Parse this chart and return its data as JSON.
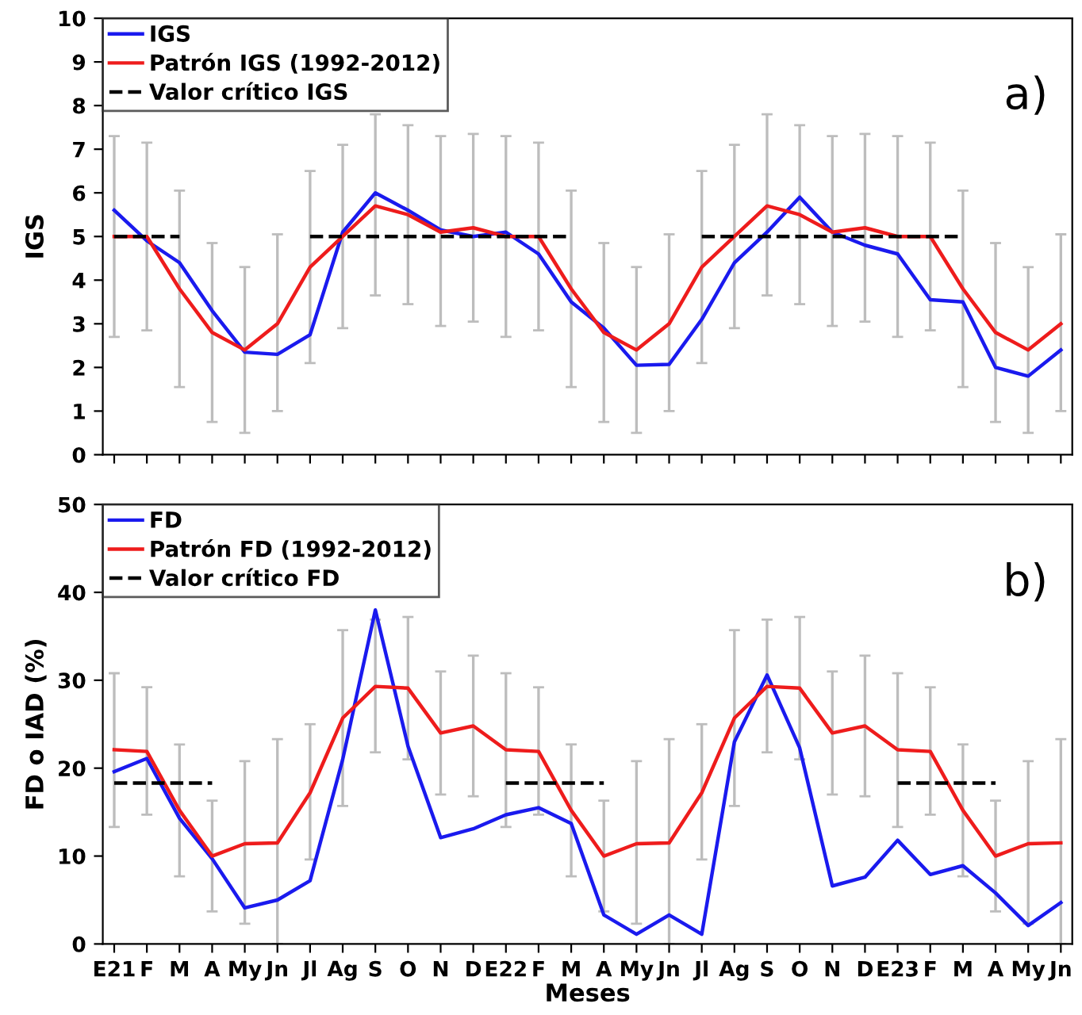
{
  "chart_data": [
    {
      "type": "line",
      "ylabel": "IGS",
      "annotations": [
        "a)"
      ],
      "legend": "top left",
      "grid": false,
      "marker": "none",
      "categories": [
        null,
        null,
        null,
        null,
        null,
        null,
        null,
        null,
        null,
        null,
        null,
        null,
        null,
        null,
        null,
        null,
        null,
        null,
        null,
        null,
        null,
        null,
        null,
        null,
        null,
        null,
        null,
        null,
        null,
        null
      ],
      "ylim": [
        0,
        10
      ],
      "yticks": [
        0,
        1,
        2,
        3,
        4,
        5,
        6,
        7,
        8,
        9,
        10
      ],
      "series": [
        {
          "name": "IGS",
          "color": "#1a1aee",
          "line_style": "solid",
          "values": [
            5.6,
            4.9,
            4.4,
            3.3,
            2.35,
            2.3,
            2.75,
            5.1,
            6.0,
            5.6,
            5.15,
            5.0,
            5.1,
            4.6,
            3.5,
            2.9,
            2.05,
            2.07,
            3.1,
            4.4,
            5.1,
            5.9,
            5.1,
            4.8,
            4.6,
            3.55,
            3.5,
            2.0,
            1.8,
            2.4
          ]
        },
        {
          "name": "Patrón IGS (1992-2012)",
          "color": "#ee1c1c",
          "line_style": "solid",
          "values": [
            5.0,
            5.0,
            3.8,
            2.8,
            2.4,
            3.0,
            4.3,
            5.0,
            5.7,
            5.5,
            5.1,
            5.2,
            5.0,
            5.0,
            3.8,
            2.8,
            2.4,
            3.0,
            4.3,
            5.0,
            5.7,
            5.5,
            5.1,
            5.2,
            5.0,
            5.0,
            3.8,
            2.8,
            2.4,
            3.0
          ],
          "errors": [
            [
              2.7,
              7.3
            ],
            [
              2.85,
              7.15
            ],
            [
              1.55,
              6.05
            ],
            [
              0.75,
              4.85
            ],
            [
              0.5,
              4.3
            ],
            [
              1.0,
              5.05
            ],
            [
              2.1,
              6.5
            ],
            [
              2.9,
              7.1
            ],
            [
              3.65,
              7.8
            ],
            [
              3.45,
              7.55
            ],
            [
              2.95,
              7.3
            ],
            [
              3.05,
              7.35
            ],
            [
              2.7,
              7.3
            ],
            [
              2.85,
              7.15
            ],
            [
              1.55,
              6.05
            ],
            [
              0.75,
              4.85
            ],
            [
              0.5,
              4.3
            ],
            [
              1.0,
              5.05
            ],
            [
              2.1,
              6.5
            ],
            [
              2.9,
              7.1
            ],
            [
              3.65,
              7.8
            ],
            [
              3.45,
              7.55
            ],
            [
              2.95,
              7.3
            ],
            [
              3.05,
              7.35
            ],
            [
              2.7,
              7.3
            ],
            [
              2.85,
              7.15
            ],
            [
              1.55,
              6.05
            ],
            [
              0.75,
              4.85
            ],
            [
              0.5,
              4.3
            ],
            [
              1.0,
              5.05
            ]
          ]
        },
        {
          "name": "Valor crítico IGS",
          "color": "#000000",
          "line_style": "dashed",
          "values": [
            5,
            5,
            5,
            null,
            null,
            null,
            5,
            5,
            5,
            5,
            5,
            5,
            5,
            5,
            5,
            null,
            null,
            null,
            5,
            5,
            5,
            5,
            5,
            5,
            5,
            5,
            5,
            null,
            null,
            null
          ]
        }
      ]
    },
    {
      "type": "line",
      "ylabel": "FD o IAD (%)",
      "xlabel": "Meses",
      "annotations": [
        "b)"
      ],
      "legend": "top left",
      "grid": false,
      "marker": "none",
      "categories": [
        "E21",
        "F",
        "M",
        "A",
        "My",
        "Jn",
        "Jl",
        "Ag",
        "S",
        "O",
        "N",
        "D",
        "E22",
        "F",
        "M",
        "A",
        "My",
        "Jn",
        "Jl",
        "Ag",
        "S",
        "O",
        "N",
        "D",
        "E23",
        "F",
        "M",
        "A",
        "My",
        "Jn"
      ],
      "ylim": [
        0,
        50
      ],
      "yticks": [
        0,
        10,
        20,
        30,
        40,
        50
      ],
      "series": [
        {
          "name": "FD",
          "color": "#1a1aee",
          "line_style": "solid",
          "values": [
            19.6,
            21.1,
            14.3,
            9.7,
            4.1,
            5.0,
            7.2,
            21,
            38,
            22.5,
            12.1,
            13.1,
            14.7,
            15.5,
            13.7,
            3.3,
            1.1,
            3.3,
            1.1,
            23,
            30.6,
            22.3,
            6.6,
            7.6,
            11.8,
            7.9,
            8.9,
            5.8,
            2.1,
            4.7
          ]
        },
        {
          "name": "Patrón FD (1992-2012)",
          "color": "#ee1c1c",
          "line_style": "solid",
          "values": [
            22.1,
            21.9,
            15.2,
            10.0,
            11.4,
            11.5,
            17.2,
            25.7,
            29.3,
            29.1,
            24.0,
            24.8,
            22.1,
            21.9,
            15.2,
            10.0,
            11.4,
            11.5,
            17.2,
            25.7,
            29.3,
            29.1,
            24.0,
            24.8,
            22.1,
            21.9,
            15.2,
            10.0,
            11.4,
            11.5
          ],
          "errors": [
            [
              13.3,
              30.8
            ],
            [
              14.7,
              29.2
            ],
            [
              7.7,
              22.7
            ],
            [
              3.7,
              16.3
            ],
            [
              2.3,
              20.8
            ],
            [
              0,
              23.3
            ],
            [
              9.6,
              25.0
            ],
            [
              15.7,
              35.7
            ],
            [
              21.8,
              36.9
            ],
            [
              21.0,
              37.2
            ],
            [
              17.0,
              31.0
            ],
            [
              16.8,
              32.8
            ],
            [
              13.3,
              30.8
            ],
            [
              14.7,
              29.2
            ],
            [
              7.7,
              22.7
            ],
            [
              3.7,
              16.3
            ],
            [
              2.3,
              20.8
            ],
            [
              0,
              23.3
            ],
            [
              9.6,
              25.0
            ],
            [
              15.7,
              35.7
            ],
            [
              21.8,
              36.9
            ],
            [
              21.0,
              37.2
            ],
            [
              17.0,
              31.0
            ],
            [
              16.8,
              32.8
            ],
            [
              13.3,
              30.8
            ],
            [
              14.7,
              29.2
            ],
            [
              7.7,
              22.7
            ],
            [
              3.7,
              16.3
            ],
            [
              2.3,
              20.8
            ],
            [
              0,
              23.3
            ]
          ]
        },
        {
          "name": "Valor crítico FD",
          "color": "#000000",
          "line_style": "dashed",
          "values": [
            18.3,
            18.3,
            18.3,
            18.3,
            null,
            null,
            null,
            null,
            null,
            null,
            null,
            null,
            18.3,
            18.3,
            18.3,
            18.3,
            null,
            null,
            null,
            null,
            null,
            null,
            null,
            null,
            18.3,
            18.3,
            18.3,
            18.3,
            null,
            null
          ]
        }
      ]
    }
  ]
}
